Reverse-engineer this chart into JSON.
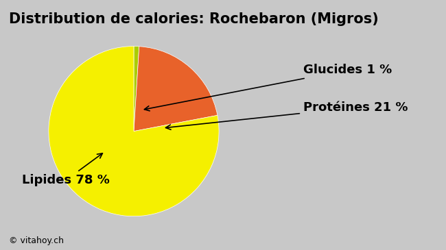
{
  "title": "Distribution de calories: Rochebaron (Migros)",
  "slices": [
    1,
    21,
    78
  ],
  "labels": [
    "Glucides 1 %",
    "Protéines 21 %",
    "Lipides 78 %"
  ],
  "colors": [
    "#aacc00",
    "#e8622a",
    "#f5f000"
  ],
  "background_color": "#c8c8c8",
  "title_fontsize": 15,
  "annotation_fontsize": 13,
  "watermark": "© vitahoy.ch",
  "startangle": 90
}
